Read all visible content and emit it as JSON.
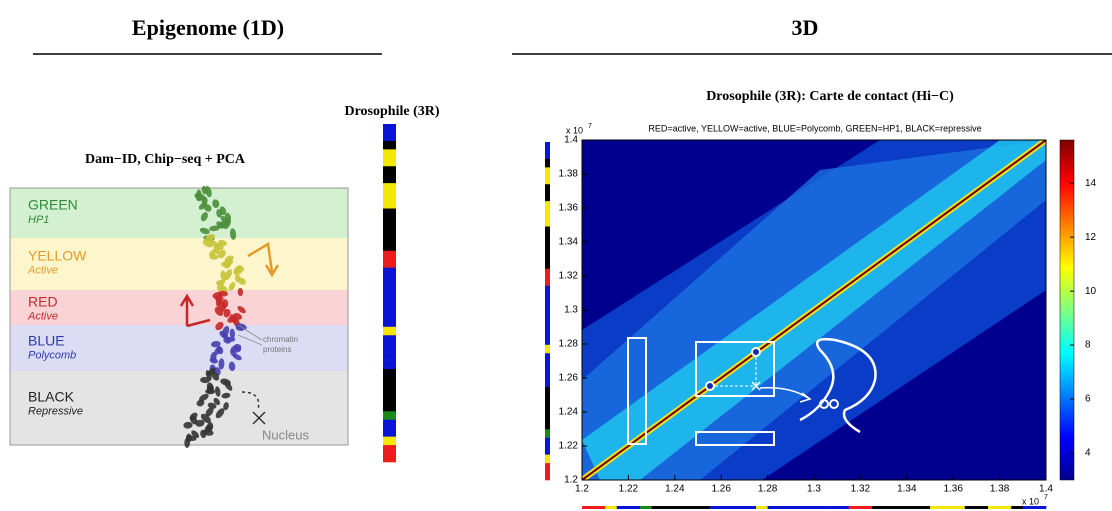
{
  "left": {
    "title": "Epigenome (1D)",
    "subtitle": "Dam−ID, Chip−seq + PCA",
    "states": [
      {
        "name": "GREEN",
        "desc": "HP1"
      },
      {
        "name": "YELLOW",
        "desc": "Active"
      },
      {
        "name": "RED",
        "desc": "Active"
      },
      {
        "name": "BLUE",
        "desc": "Polycomb"
      },
      {
        "name": "BLACK",
        "desc": "Repressive"
      }
    ],
    "annotation": [
      "chromatin",
      "proteins"
    ],
    "nucleus": "Nucleus"
  },
  "track_title": "Drosophile (3R)",
  "right": {
    "title": "3D",
    "chart_title": "Drosophile (3R): Carte de contact (Hi−C)",
    "legend_text": "RED=active, YELLOW=active, BLUE=Polycomb, GREEN=HP1, BLACK=repressive",
    "xlim": [
      1.2,
      1.4
    ],
    "xticks": [
      1.2,
      1.22,
      1.24,
      1.26,
      1.28,
      1.3,
      1.32,
      1.34,
      1.36,
      1.38,
      1.4
    ],
    "ylim": [
      1.2,
      1.4
    ],
    "yticks": [
      1.2,
      1.22,
      1.24,
      1.26,
      1.28,
      1.3,
      1.32,
      1.34,
      1.36,
      1.38,
      1.4
    ],
    "exponent_base": "x 10",
    "exponent": "7",
    "colorbar": {
      "lim": [
        3,
        15.6
      ],
      "ticks": [
        4,
        6,
        8,
        10,
        12,
        14
      ]
    }
  }
}
